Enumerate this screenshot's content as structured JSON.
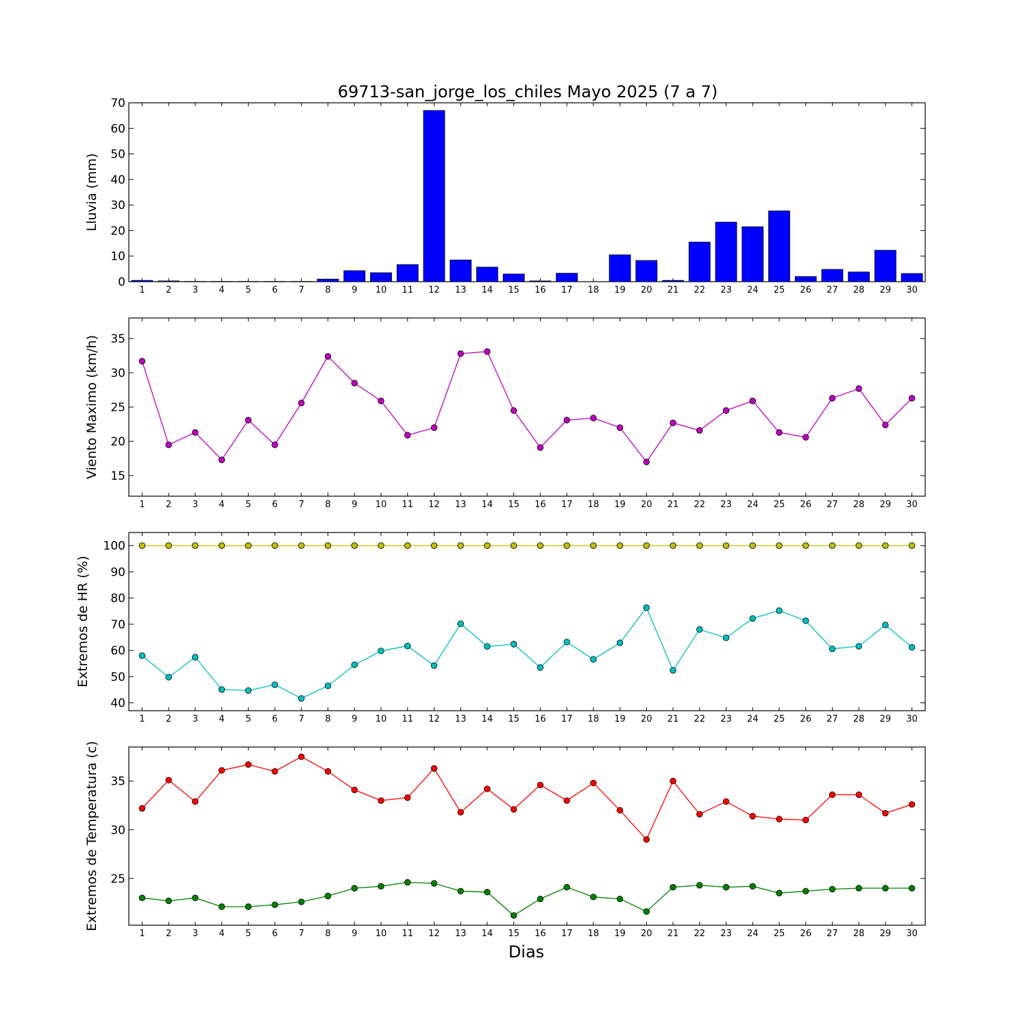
{
  "chart_data": {
    "title": "69713-san_jorge_los_chiles Mayo 2025  (7 a 7)",
    "xlabel": "Dias",
    "days": [
      1,
      2,
      3,
      4,
      5,
      6,
      7,
      8,
      9,
      10,
      11,
      12,
      13,
      14,
      15,
      16,
      17,
      18,
      19,
      20,
      21,
      22,
      23,
      24,
      25,
      26,
      27,
      28,
      29,
      30
    ],
    "panels": [
      {
        "type": "bar",
        "ylabel": "Lluvia (mm)",
        "ylim": [
          0,
          70
        ],
        "yticks": [
          0,
          10,
          20,
          30,
          40,
          50,
          60,
          70
        ],
        "series": [
          {
            "color": "#0000ff",
            "values": [
              0.5,
              0.3,
              0.1,
              0.1,
              0.1,
              0.1,
              0.1,
              1.0,
              4.3,
              3.5,
              6.7,
              67.0,
              8.5,
              5.7,
              3.0,
              0.3,
              3.3,
              0,
              10.5,
              8.3,
              0.5,
              15.5,
              23.3,
              21.5,
              27.7,
              2.0,
              4.8,
              3.8,
              12.3,
              3.2
            ]
          }
        ]
      },
      {
        "type": "line",
        "ylabel": "Viento Maximo (km/h)",
        "ylim": [
          12,
          38
        ],
        "yticks": [
          15,
          20,
          25,
          30,
          35
        ],
        "series": [
          {
            "color": "#bf00bf",
            "values": [
              31.7,
              19.5,
              21.3,
              17.3,
              23.1,
              19.5,
              25.6,
              32.4,
              28.5,
              25.9,
              20.9,
              22.0,
              32.8,
              33.1,
              24.5,
              19.1,
              23.1,
              23.4,
              22.0,
              17.0,
              22.7,
              21.6,
              24.5,
              25.9,
              21.3,
              20.6,
              26.3,
              27.7,
              22.4,
              26.3
            ]
          }
        ]
      },
      {
        "type": "line",
        "ylabel": "Extremos de HR (%)",
        "ylim": [
          37,
          105
        ],
        "yticks": [
          40,
          50,
          60,
          70,
          80,
          90,
          100
        ],
        "series": [
          {
            "color": "#bfbf00",
            "values": [
              100,
              100,
              100,
              100,
              100,
              100,
              100,
              100,
              100,
              100,
              100,
              100,
              100,
              100,
              100,
              100,
              100,
              100,
              100,
              100,
              100,
              100,
              100,
              100,
              100,
              100,
              100,
              100,
              100,
              100
            ]
          },
          {
            "color": "#00bfbf",
            "values": [
              58.0,
              49.8,
              57.4,
              45.1,
              44.7,
              46.9,
              41.7,
              46.5,
              54.5,
              59.8,
              61.7,
              54.2,
              70.2,
              61.5,
              62.4,
              53.5,
              63.2,
              56.6,
              62.9,
              76.3,
              52.4,
              68.0,
              64.8,
              72.2,
              75.2,
              71.3,
              60.6,
              61.6,
              69.7,
              61.2
            ]
          }
        ]
      },
      {
        "type": "line",
        "ylabel": "Extremos de Temperatura (c)",
        "ylim": [
          20.2,
          38.5
        ],
        "yticks": [
          25,
          30,
          35
        ],
        "series": [
          {
            "color": "#ff0000",
            "values": [
              32.2,
              35.1,
              32.9,
              36.1,
              36.7,
              36.0,
              37.5,
              36.0,
              34.1,
              33.0,
              33.3,
              36.3,
              31.8,
              34.2,
              32.1,
              34.6,
              33.0,
              34.8,
              32.0,
              29.0,
              35.0,
              31.6,
              32.9,
              31.4,
              31.1,
              31.0,
              33.6,
              33.6,
              31.7,
              32.6
            ]
          },
          {
            "color": "#008000",
            "values": [
              23.0,
              22.7,
              23.0,
              22.1,
              22.1,
              22.3,
              22.6,
              23.2,
              24.0,
              24.2,
              24.6,
              24.5,
              23.7,
              23.6,
              21.2,
              22.9,
              24.1,
              23.1,
              22.9,
              21.6,
              24.1,
              24.3,
              24.1,
              24.2,
              23.5,
              23.7,
              23.9,
              24.0,
              24.0,
              24.0
            ]
          }
        ]
      }
    ]
  }
}
